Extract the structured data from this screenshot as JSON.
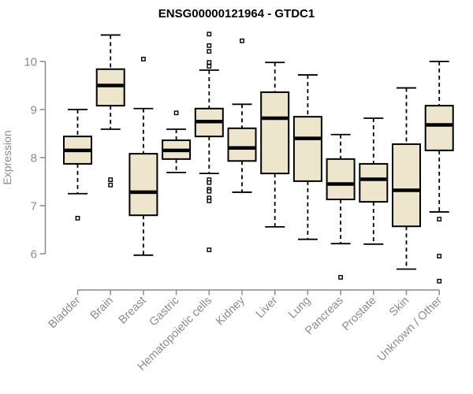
{
  "chart_data": {
    "type": "boxplot",
    "title": "ENSG00000121964 - GTDC1",
    "xlabel": "",
    "ylabel": "Expression",
    "ylim": [
      5.2,
      10.8
    ],
    "yticks": [
      6,
      7,
      8,
      9,
      10
    ],
    "grid": false,
    "legend": "none",
    "categories": [
      "Bladder",
      "Brain",
      "Breast",
      "Gastric",
      "Hematopoietic cells",
      "Kidney",
      "Liver",
      "Lung",
      "Pancreas",
      "Prostate",
      "Skin",
      "Unknown / Other"
    ],
    "series": [
      {
        "category": "Bladder",
        "whisker_low": 7.25,
        "q1": 7.87,
        "median": 8.15,
        "q3": 8.44,
        "whisker_high": 9.0,
        "outliers": [
          6.74
        ]
      },
      {
        "category": "Brain",
        "whisker_low": 8.59,
        "q1": 9.08,
        "median": 9.5,
        "q3": 9.84,
        "whisker_high": 10.55,
        "outliers": [
          7.54,
          7.43
        ]
      },
      {
        "category": "Breast",
        "whisker_low": 5.97,
        "q1": 6.8,
        "median": 7.28,
        "q3": 8.08,
        "whisker_high": 9.02,
        "outliers": [
          10.05
        ]
      },
      {
        "category": "Gastric",
        "whisker_low": 7.69,
        "q1": 7.97,
        "median": 8.15,
        "q3": 8.36,
        "whisker_high": 8.59,
        "outliers": [
          8.93
        ]
      },
      {
        "category": "Hematopoietic cells",
        "whisker_low": 7.67,
        "q1": 8.44,
        "median": 8.75,
        "q3": 9.02,
        "whisker_high": 9.82,
        "outliers": [
          10.57,
          10.33,
          10.21,
          9.98,
          9.9,
          7.54,
          7.48,
          7.34,
          7.3,
          7.16,
          7.1,
          6.08
        ]
      },
      {
        "category": "Kidney",
        "whisker_low": 7.28,
        "q1": 7.93,
        "median": 8.2,
        "q3": 8.61,
        "whisker_high": 9.11,
        "outliers": [
          10.43
        ]
      },
      {
        "category": "Liver",
        "whisker_low": 6.56,
        "q1": 7.67,
        "median": 8.82,
        "q3": 9.36,
        "whisker_high": 9.98,
        "outliers": []
      },
      {
        "category": "Lung",
        "whisker_low": 6.3,
        "q1": 7.51,
        "median": 8.4,
        "q3": 8.85,
        "whisker_high": 9.72,
        "outliers": []
      },
      {
        "category": "Pancreas",
        "whisker_low": 6.21,
        "q1": 7.13,
        "median": 7.45,
        "q3": 7.97,
        "whisker_high": 8.48,
        "outliers": [
          5.51
        ]
      },
      {
        "category": "Prostate",
        "whisker_low": 6.2,
        "q1": 7.08,
        "median": 7.55,
        "q3": 7.87,
        "whisker_high": 8.82,
        "outliers": []
      },
      {
        "category": "Skin",
        "whisker_low": 5.68,
        "q1": 6.57,
        "median": 7.32,
        "q3": 8.28,
        "whisker_high": 9.45,
        "outliers": []
      },
      {
        "category": "Unknown / Other",
        "whisker_low": 6.87,
        "q1": 8.15,
        "median": 8.68,
        "q3": 9.08,
        "whisker_high": 10.0,
        "outliers": [
          6.72,
          5.95,
          5.43
        ]
      }
    ]
  },
  "colors": {
    "box_fill": "#ede6cd",
    "box_stroke": "#000000",
    "median": "#000000",
    "whisker": "#000000",
    "outlier_fill": "#ffffff",
    "axis": "#8c8c8c",
    "tick_label": "#8c8c8c",
    "title": "#000000",
    "background": "#ffffff"
  }
}
